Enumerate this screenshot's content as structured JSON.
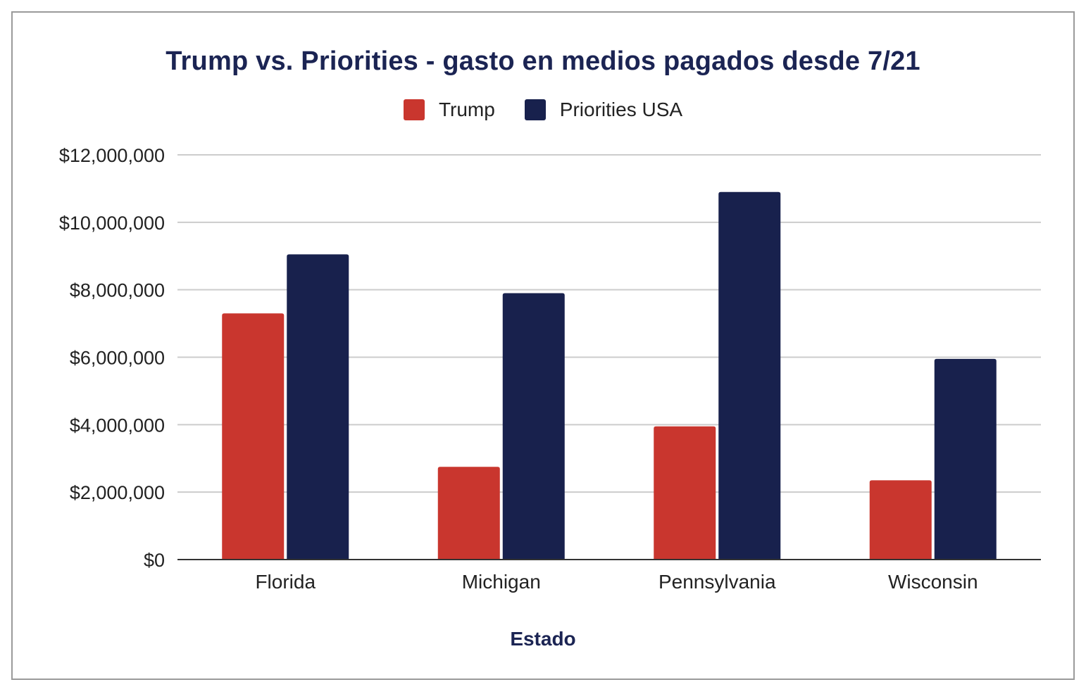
{
  "chart_data": {
    "type": "bar",
    "title": "Trump vs. Priorities - gasto en medios pagados desde 7/21",
    "xlabel": "Estado",
    "ylabel": "",
    "categories": [
      "Florida",
      "Michigan",
      "Pennsylvania",
      "Wisconsin"
    ],
    "series": [
      {
        "name": "Trump",
        "color": "#c9362e",
        "values": [
          7300000,
          2750000,
          3950000,
          2350000
        ]
      },
      {
        "name": "Priorities USA",
        "color": "#18214d",
        "values": [
          9050000,
          7900000,
          10900000,
          5950000
        ]
      }
    ],
    "ylim": [
      0,
      12000000
    ],
    "yticks": [
      0,
      2000000,
      4000000,
      6000000,
      8000000,
      10000000,
      12000000
    ],
    "ytick_labels": [
      "$0",
      "$2,000,000",
      "$4,000,000",
      "$6,000,000",
      "$8,000,000",
      "$10,000,000",
      "$12,000,000"
    ],
    "grid": true,
    "legend_position": "top-center"
  }
}
